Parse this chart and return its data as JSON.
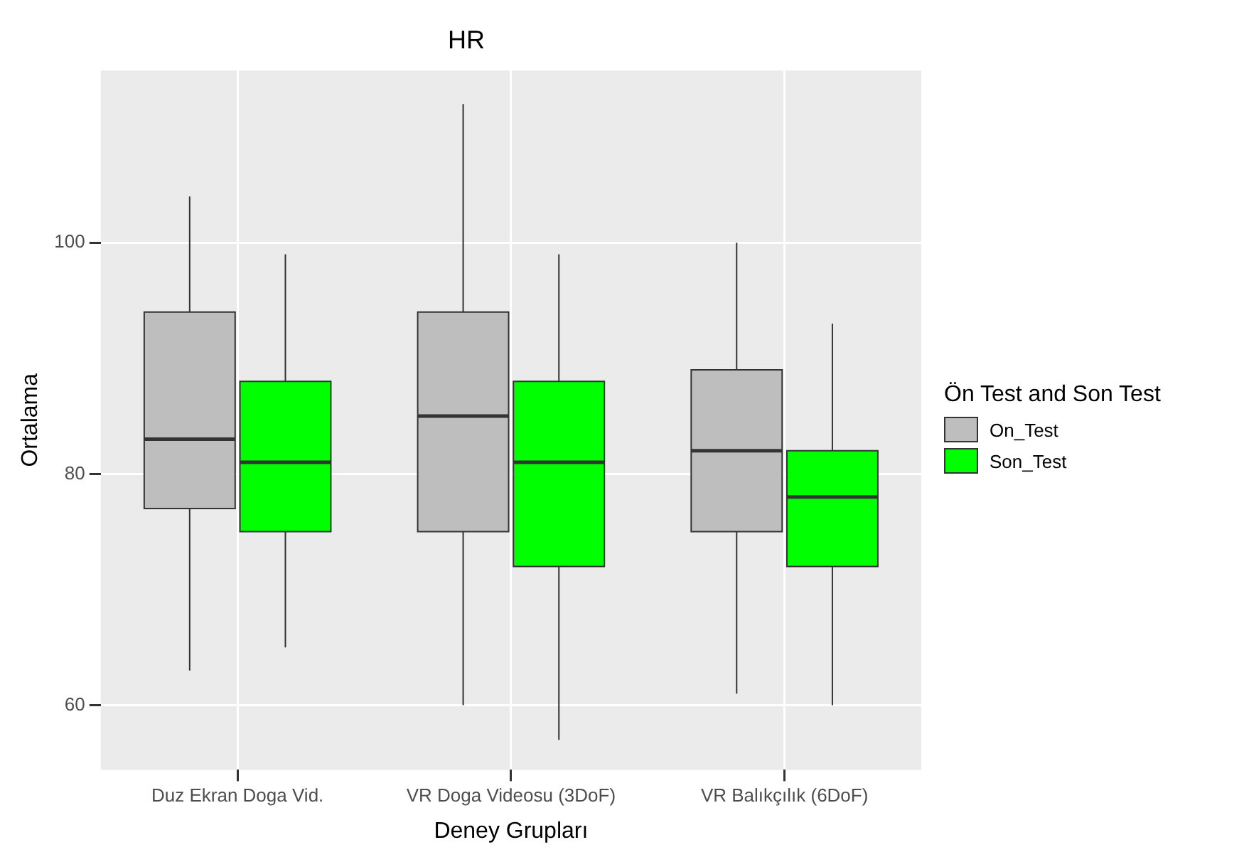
{
  "chart_data": {
    "type": "box",
    "title": "HR",
    "xlabel": "Deney Grupları",
    "ylabel": "Ortalama",
    "legend_title": "Ön Test and Son Test",
    "categories": [
      "Duz Ekran Doga Vid.",
      "VR Doga Videosu (3DoF)",
      "VR Balıkçılık (6DoF)"
    ],
    "series": [
      {
        "name": "On_Test",
        "color": "#bebebe",
        "boxes": [
          {
            "low": 63,
            "q1": 77,
            "median": 83,
            "q3": 94,
            "high": 104
          },
          {
            "low": 60,
            "q1": 75,
            "median": 85,
            "q3": 94,
            "high": 112
          },
          {
            "low": 61,
            "q1": 75,
            "median": 82,
            "q3": 89,
            "high": 100
          }
        ]
      },
      {
        "name": "Son_Test",
        "color": "#00ff00",
        "boxes": [
          {
            "low": 65,
            "q1": 75,
            "median": 81,
            "q3": 88,
            "high": 99
          },
          {
            "low": 57,
            "q1": 72,
            "median": 81,
            "q3": 88,
            "high": 99
          },
          {
            "low": 60,
            "q1": 72,
            "median": 78,
            "q3": 82,
            "high": 93
          }
        ]
      }
    ],
    "ylim": [
      54.4,
      114.9
    ],
    "yticks": [
      60,
      80,
      100
    ],
    "grid": true,
    "legend": "right"
  }
}
